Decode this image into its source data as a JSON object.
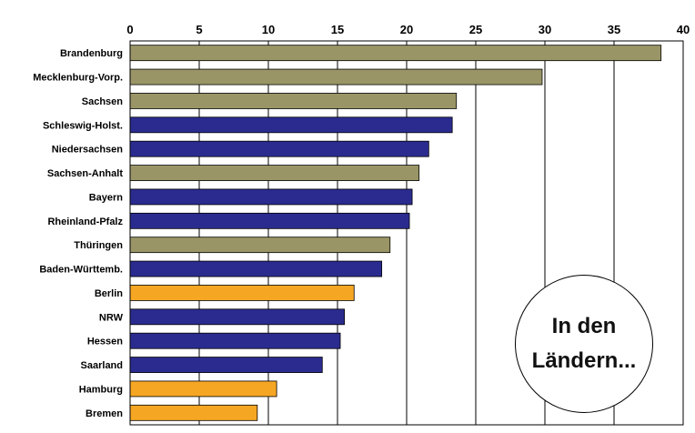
{
  "chart_data": {
    "type": "bar",
    "orientation": "horizontal",
    "xlim": [
      0,
      40
    ],
    "x_ticks": [
      "0",
      "5",
      "10",
      "15",
      "20",
      "25",
      "30",
      "35",
      "40"
    ],
    "x_axis_position": "top",
    "grid": true,
    "categories": [
      "Brandenburg",
      "Mecklenburg-Vorp.",
      "Sachsen",
      "Schleswig-Holst.",
      "Niedersachsen",
      "Sachsen-Anhalt",
      "Bayern",
      "Rheinland-Pfalz",
      "Thüringen",
      "Baden-Württemb.",
      "Berlin",
      "NRW",
      "Hessen",
      "Saarland",
      "Hamburg",
      "Bremen"
    ],
    "values": [
      38.4,
      29.8,
      23.6,
      23.3,
      21.6,
      20.9,
      20.4,
      20.2,
      18.8,
      18.2,
      16.2,
      15.5,
      15.2,
      13.9,
      10.6,
      9.2
    ],
    "groups": [
      "east",
      "east",
      "east",
      "west",
      "west",
      "east",
      "west",
      "west",
      "east",
      "west",
      "city",
      "west",
      "west",
      "west",
      "city",
      "city"
    ],
    "colors": {
      "east": "#9a9566",
      "west": "#2b2b8f",
      "city": "#f5a623"
    }
  },
  "badge": {
    "text": "In den\nLändern..."
  }
}
